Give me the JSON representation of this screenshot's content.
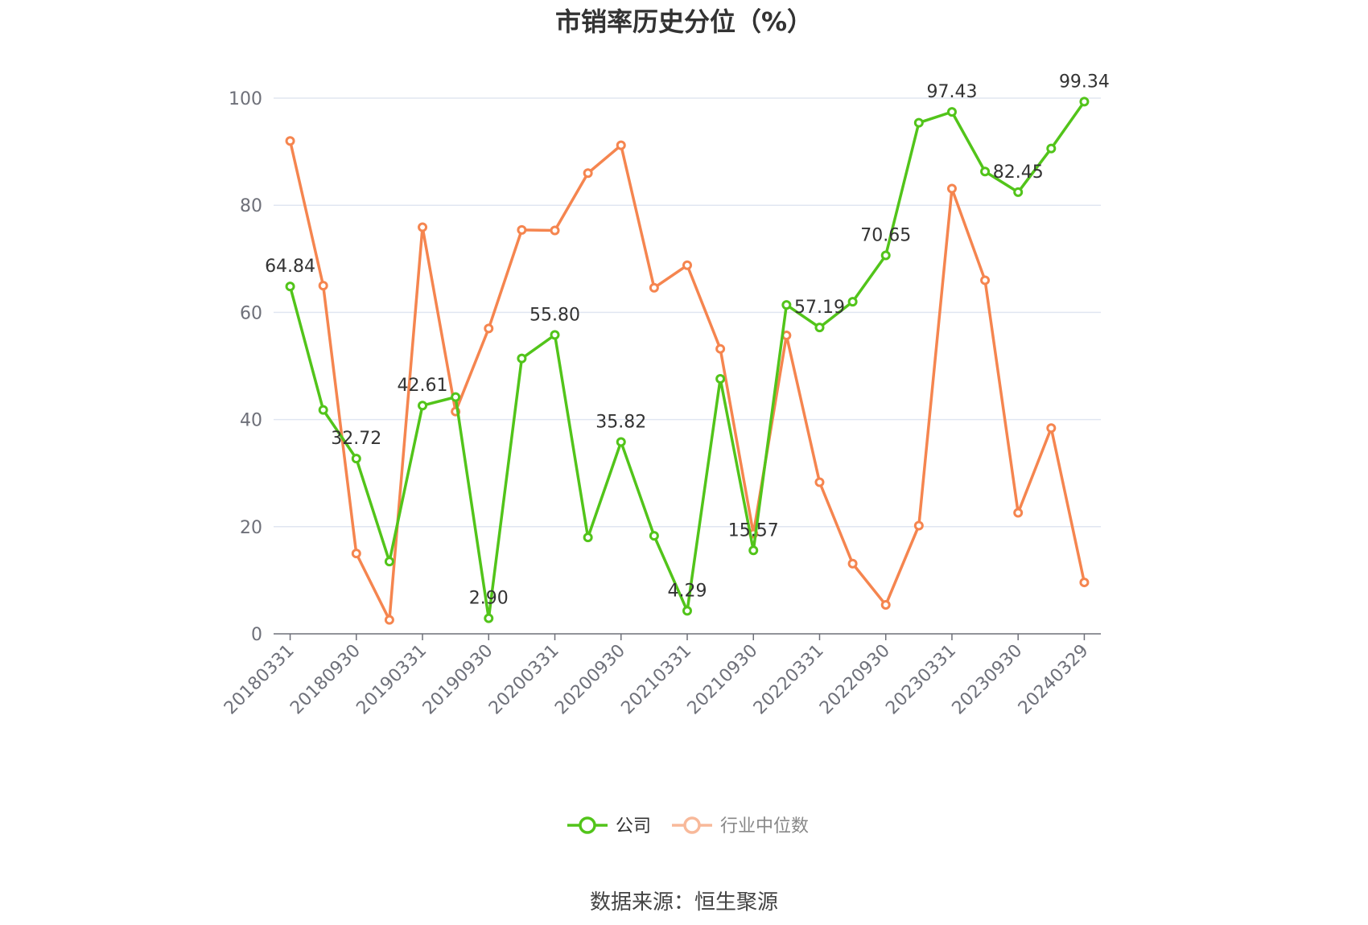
{
  "chart_data": {
    "type": "line",
    "title": "市销率历史分位（%）",
    "source": "数据来源：恒生聚源",
    "ylim": [
      0,
      100
    ],
    "yticks": [
      0,
      20,
      40,
      60,
      80,
      100
    ],
    "grid": true,
    "legend_position": "bottom",
    "x": [
      "20180331",
      "20180630",
      "20180930",
      "20181231",
      "20190331",
      "20190630",
      "20190930",
      "20191231",
      "20200331",
      "20200630",
      "20200930",
      "20201231",
      "20210331",
      "20210630",
      "20210930",
      "20211231",
      "20220331",
      "20220630",
      "20220930",
      "20221231",
      "20230331",
      "20230630",
      "20230930",
      "20231231",
      "20240329"
    ],
    "xtick_labels": [
      "20180331",
      "20180930",
      "20190331",
      "20190930",
      "20200331",
      "20200930",
      "20210331",
      "20210930",
      "20220331",
      "20220930",
      "20230331",
      "20230930",
      "20240329"
    ],
    "series": [
      {
        "name": "公司",
        "color": "#52c41a",
        "values": [
          64.84,
          41.8,
          32.72,
          13.5,
          42.61,
          44.2,
          2.9,
          51.4,
          55.8,
          18.0,
          35.82,
          18.3,
          4.29,
          47.6,
          15.57,
          61.4,
          57.19,
          62.0,
          70.65,
          95.4,
          97.43,
          86.3,
          82.45,
          90.6,
          99.34
        ],
        "labeled_points": [
          {
            "index": 0,
            "text": "64.84"
          },
          {
            "index": 2,
            "text": "32.72"
          },
          {
            "index": 4,
            "text": "42.61"
          },
          {
            "index": 6,
            "text": "2.90"
          },
          {
            "index": 8,
            "text": "55.80"
          },
          {
            "index": 10,
            "text": "35.82"
          },
          {
            "index": 12,
            "text": "4.29"
          },
          {
            "index": 14,
            "text": "15.57"
          },
          {
            "index": 16,
            "text": "57.19"
          },
          {
            "index": 18,
            "text": "70.65"
          },
          {
            "index": 20,
            "text": "97.43"
          },
          {
            "index": 22,
            "text": "82.45"
          },
          {
            "index": 24,
            "text": "99.34"
          }
        ]
      },
      {
        "name": "行业中位数",
        "color": "#f5854f",
        "values": [
          92.0,
          65.0,
          15.0,
          2.6,
          75.9,
          41.5,
          57.0,
          75.4,
          75.3,
          86.0,
          91.2,
          64.6,
          68.8,
          53.2,
          18.7,
          55.7,
          28.3,
          13.1,
          5.4,
          20.2,
          83.1,
          66.0,
          22.6,
          38.4,
          9.6
        ]
      }
    ]
  }
}
